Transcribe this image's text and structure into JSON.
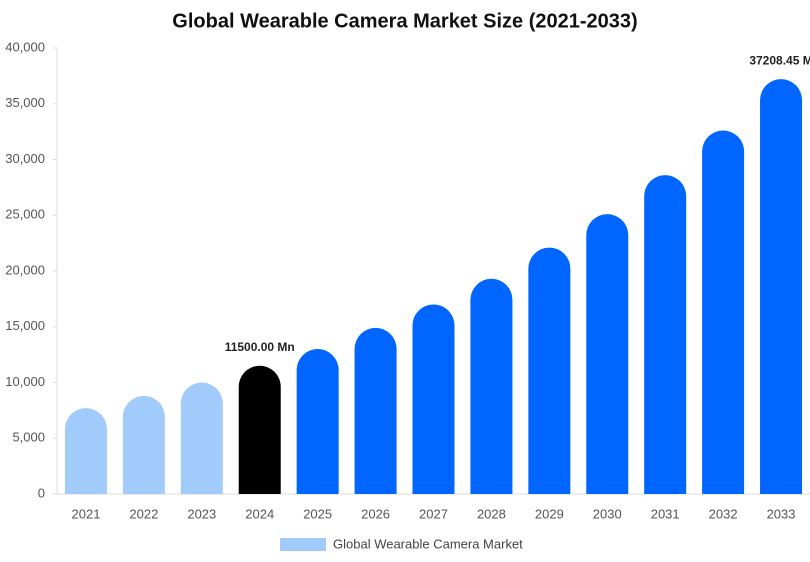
{
  "chart_data": {
    "type": "bar",
    "title": "Global Wearable Camera Market Size (2021-2033)",
    "categories": [
      "2021",
      "2022",
      "2023",
      "2024",
      "2025",
      "2026",
      "2027",
      "2028",
      "2029",
      "2030",
      "2031",
      "2032",
      "2033"
    ],
    "series": [
      {
        "name": "Global Wearable Camera Market",
        "color": "#a0cbfa",
        "values": [
          7700,
          8800,
          10000,
          11500,
          13000,
          14900,
          17000,
          19300,
          22100,
          25100,
          28600,
          32600,
          37208.45
        ],
        "value_labels": [
          null,
          null,
          null,
          "11500.00 Mn",
          null,
          null,
          null,
          null,
          null,
          null,
          null,
          null,
          "37208.45 M"
        ],
        "colors": [
          "#a0cbfa",
          "#a0cbfa",
          "#a0cbfa",
          "#000000",
          "#0066ff",
          "#0066ff",
          "#0066ff",
          "#0066ff",
          "#0066ff",
          "#0066ff",
          "#0066ff",
          "#0066ff",
          "#0066ff"
        ]
      }
    ],
    "ylim": [
      0,
      40000
    ],
    "yticks": [
      0,
      {
        "value": 5000,
        "label": "5,000"
      },
      {
        "value": 10000,
        "label": "10,000"
      },
      {
        "value": 15000,
        "label": "15,000"
      },
      {
        "value": 20000,
        "label": "20,000"
      },
      {
        "value": 25000,
        "label": "25,000"
      },
      {
        "value": 30000,
        "label": "30,000"
      },
      {
        "value": 35000,
        "label": "35,000"
      },
      {
        "value": 40000,
        "label": "40,000"
      }
    ],
    "grid": false,
    "legend": "bottom"
  }
}
